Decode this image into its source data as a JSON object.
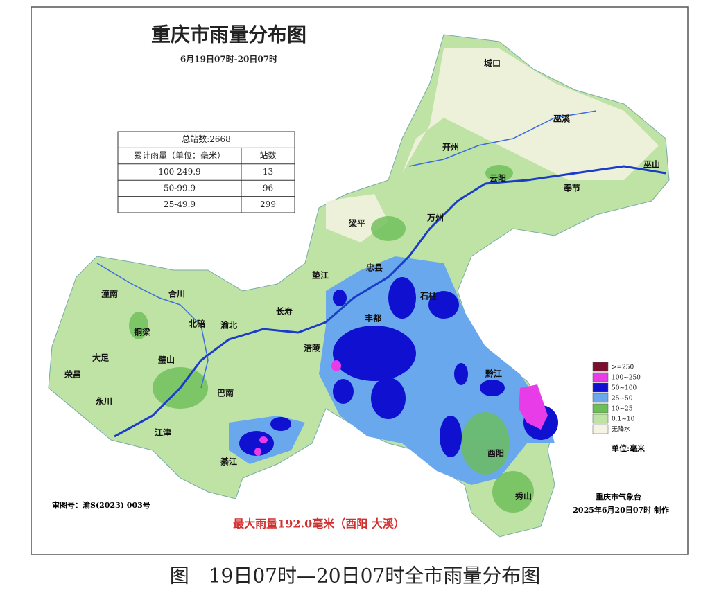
{
  "title": "重庆市雨量分布图",
  "subtitle": "6月19日07时-20日07时",
  "table": {
    "total": "总站数:2668",
    "headers": [
      "累计雨量（单位：毫米）",
      "站数"
    ],
    "rows": [
      [
        "100-249.9",
        13
      ],
      [
        "50-99.9",
        96
      ],
      [
        "25-49.9",
        299
      ]
    ]
  },
  "places": [
    "城口",
    "巫溪",
    "开州",
    "巫山",
    "云阳",
    "奉节",
    "梁平",
    "万州",
    "忠县",
    "垫江",
    "石柱",
    "潼南",
    "合川",
    "长寿",
    "北碚",
    "渝北",
    "丰都",
    "铜梁",
    "大足",
    "璧山",
    "涪陵",
    "荣昌",
    "永川",
    "巴南",
    "黔江",
    "江津",
    "綦江",
    "酉阳",
    "秀山"
  ],
  "legend": {
    "items": [
      {
        "label": ">=250",
        "color": "#7a1030"
      },
      {
        "label": "100~250",
        "color": "#e83ce8"
      },
      {
        "label": "50~100",
        "color": "#1010d0"
      },
      {
        "label": "25~50",
        "color": "#6aa8ee"
      },
      {
        "label": "10~25",
        "color": "#6cbe58"
      },
      {
        "label": "0.1~10",
        "color": "#bfe3a4"
      },
      {
        "label": "无降水",
        "color": "#f6f3e4"
      }
    ],
    "unit": "单位:毫米"
  },
  "maker": "重庆市气象台",
  "made_time": "2025年6月20日07时 制作",
  "map_no": "审图号：渝S(2023) 003号",
  "max_rain": "最大雨量192.0毫米（酉阳 大溪）",
  "caption": "图　19日07时—20日07时全市雨量分布图"
}
